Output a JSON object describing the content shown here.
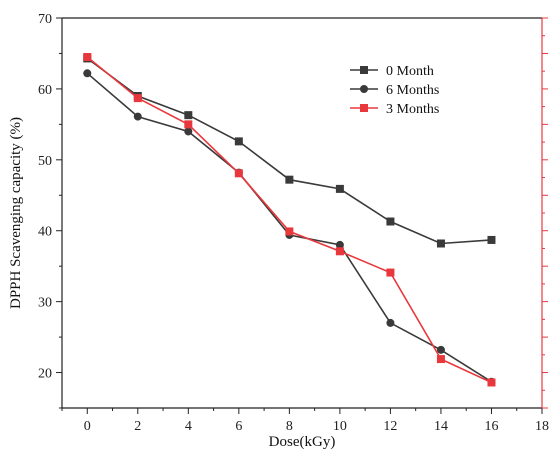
{
  "chart_data": {
    "type": "line",
    "xlabel": "Dose(kGy)",
    "ylabel": "DPPH Scavenging capacity (%)",
    "xlim": [
      -1,
      18
    ],
    "ylim": [
      15,
      70
    ],
    "x_ticks": [
      0,
      2,
      4,
      6,
      8,
      10,
      12,
      14,
      16,
      18
    ],
    "y_ticks": [
      20,
      30,
      40,
      50,
      60,
      70
    ],
    "x": [
      0,
      2,
      4,
      6,
      8,
      10,
      12,
      14,
      16
    ],
    "series": [
      {
        "name": "0 Month",
        "color": "#3a3a3a",
        "marker": "square",
        "axis": "left",
        "values": [
          64.3,
          59.0,
          56.3,
          52.6,
          47.2,
          45.9,
          41.3,
          38.2,
          38.7
        ]
      },
      {
        "name": "6 Months",
        "color": "#3a3a3a",
        "marker": "circle",
        "axis": "left",
        "values": [
          62.2,
          56.1,
          54.0,
          48.2,
          39.4,
          38.0,
          27.0,
          23.2,
          18.7
        ]
      },
      {
        "name": "3 Months",
        "color": "#e8383d",
        "marker": "square",
        "axis": "right",
        "values": [
          64.5,
          58.7,
          55.0,
          48.1,
          39.9,
          37.1,
          34.1,
          21.9,
          18.6
        ]
      }
    ],
    "right_axis": {
      "color": "#e8383d",
      "tick_labels": "hidden"
    },
    "legend_position": "top-right",
    "grid": false
  }
}
